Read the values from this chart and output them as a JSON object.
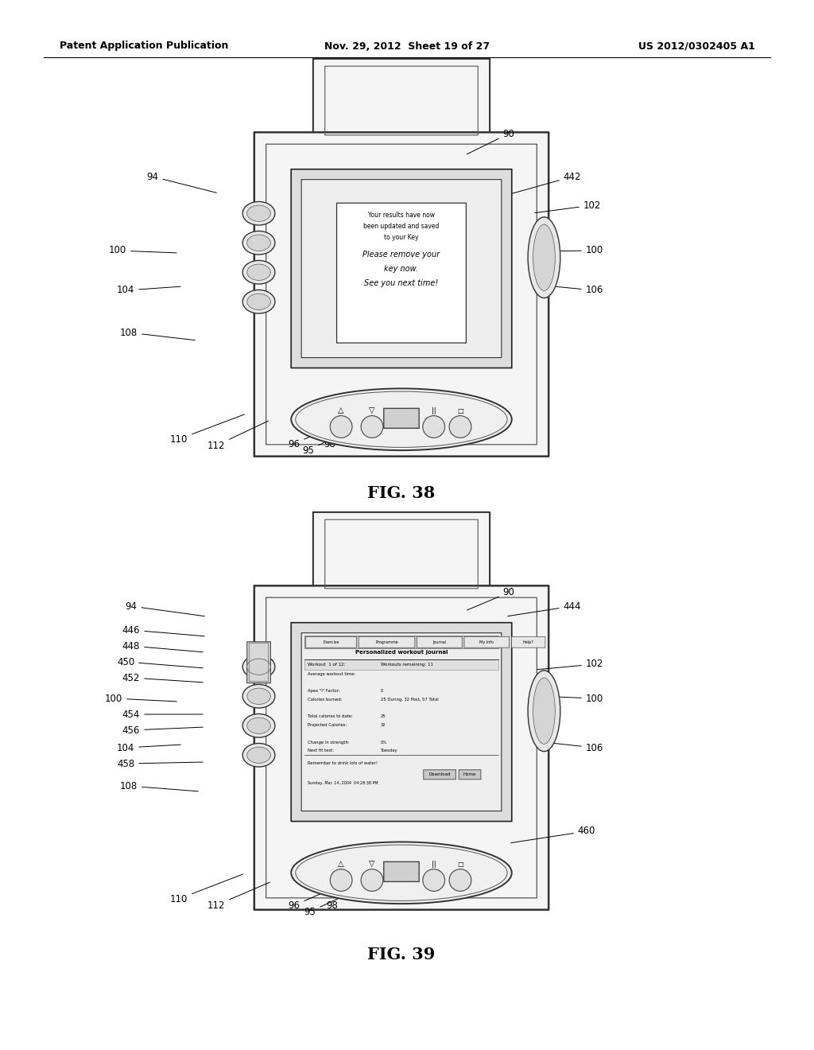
{
  "background_color": "#ffffff",
  "header_left": "Patent Application Publication",
  "header_middle": "Nov. 29, 2012  Sheet 19 of 27",
  "header_right": "US 2012/0302405 A1",
  "fig38_title": "FIG. 38",
  "fig39_title": "FIG. 39",
  "screen38_text_small": [
    "Your results have now",
    "been updated and saved",
    "to your Key"
  ],
  "screen38_text_large": [
    "Please remove your",
    "key now.",
    "See you next time!"
  ],
  "screen39_menu": "Exercise  Programme  Journal  My Info  Help?",
  "screen39_title": "Personalized workout journal",
  "screen39_tip": "Remember to drink lots of water!",
  "screen39_date": "Sunday, Mar. 14, 2004  04:28:38 PM",
  "screen39_btn1": "Download",
  "screen39_btn2": "Home"
}
